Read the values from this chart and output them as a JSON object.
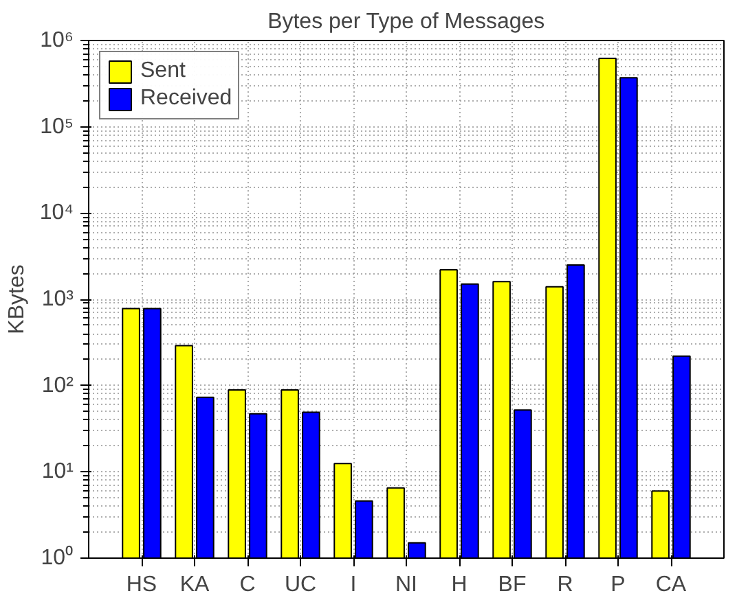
{
  "chart_data": {
    "type": "bar",
    "title": "Bytes per Type of Messages",
    "ylabel": "KBytes",
    "categories": [
      "HS",
      "KA",
      "C",
      "UC",
      "I",
      "NI",
      "H",
      "BF",
      "R",
      "P",
      "CA"
    ],
    "series": [
      {
        "name": "Sent",
        "color": "#ffff00",
        "values": [
          780,
          290,
          89,
          89,
          12.5,
          6.5,
          2200,
          1600,
          1400,
          620000,
          6
        ]
      },
      {
        "name": "Received",
        "color": "#0000ff",
        "values": [
          780,
          73,
          47,
          49,
          4.6,
          1.5,
          1500,
          52,
          2500,
          370000,
          220
        ]
      }
    ],
    "log": true,
    "ylim": [
      1,
      1000000
    ],
    "yticks": [
      {
        "value": 1,
        "label": "10⁰"
      },
      {
        "value": 10,
        "label": "10¹"
      },
      {
        "value": 100,
        "label": "10²"
      },
      {
        "value": 1000,
        "label": "10³"
      },
      {
        "value": 10000,
        "label": "10⁴"
      },
      {
        "value": 100000,
        "label": "10⁵"
      },
      {
        "value": 1000000,
        "label": "10⁶"
      }
    ],
    "grid": true,
    "legend": "top left"
  }
}
